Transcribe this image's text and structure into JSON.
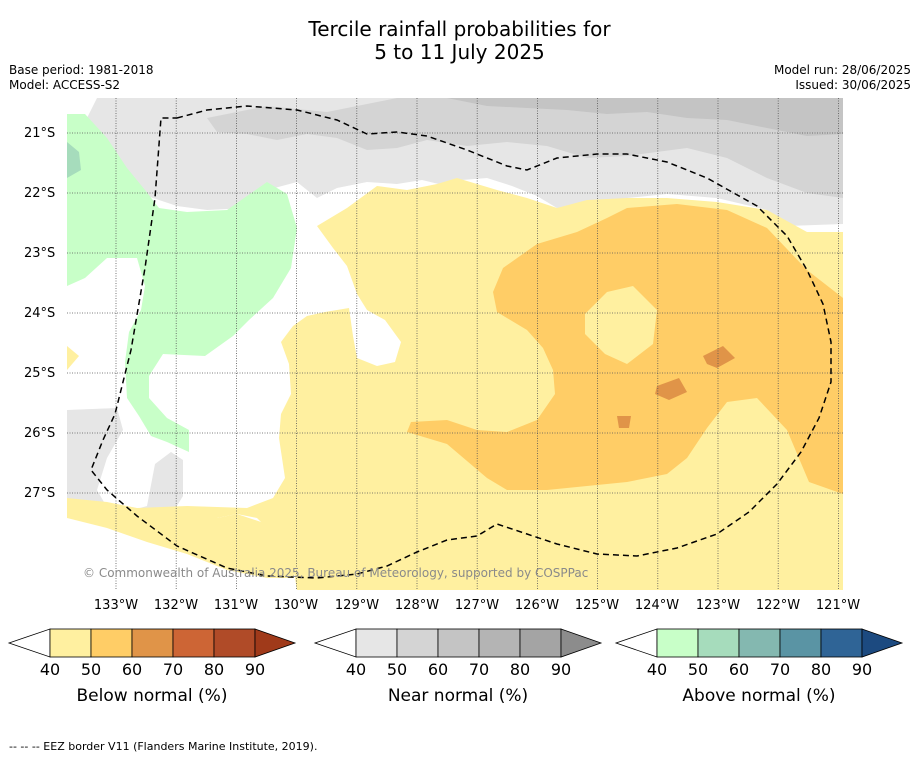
{
  "title_line1": "Tercile rainfall probabilities for",
  "title_line2": "5 to 11 July 2025",
  "meta_left": {
    "base_period": "Base period: 1981-2018",
    "model": "Model: ACCESS-S2"
  },
  "meta_right": {
    "model_run": "Model run: 28/06/2025",
    "issued": "Issued: 30/06/2025"
  },
  "latitude_labels": [
    "21°S",
    "22°S",
    "23°S",
    "24°S",
    "25°S",
    "26°S",
    "27°S"
  ],
  "longitude_labels": [
    "133°W",
    "132°W",
    "131°W",
    "130°W",
    "129°W",
    "128°W",
    "127°W",
    "126°W",
    "125°W",
    "124°W",
    "123°W",
    "122°W",
    "121°W"
  ],
  "copyright": "© Commonwealth of Australia 2025, Bureau of Meteorology, supported by COSPPac",
  "colorbars": [
    {
      "title": "Below normal (%)",
      "ticks": [
        "40",
        "50",
        "60",
        "70",
        "80",
        "90"
      ],
      "colors": [
        "#fff0a0",
        "#ffcd66",
        "#e09448",
        "#cd6535",
        "#b04b28",
        "#a03a1a"
      ]
    },
    {
      "title": "Near normal (%)",
      "ticks": [
        "40",
        "50",
        "60",
        "70",
        "80",
        "90"
      ],
      "colors": [
        "#e6e6e6",
        "#d4d4d4",
        "#c4c4c4",
        "#b4b4b4",
        "#a4a4a4",
        "#8c8c8c"
      ]
    },
    {
      "title": "Above normal (%)",
      "ticks": [
        "40",
        "50",
        "60",
        "70",
        "80",
        "90"
      ],
      "colors": [
        "#c8ffc8",
        "#a6dcbc",
        "#84b8b0",
        "#5a94a4",
        "#2f6496",
        "#1c4a80"
      ]
    }
  ],
  "footnote": "--  --  -- EEZ border V11 (Flanders Marine Institute, 2019)."
}
